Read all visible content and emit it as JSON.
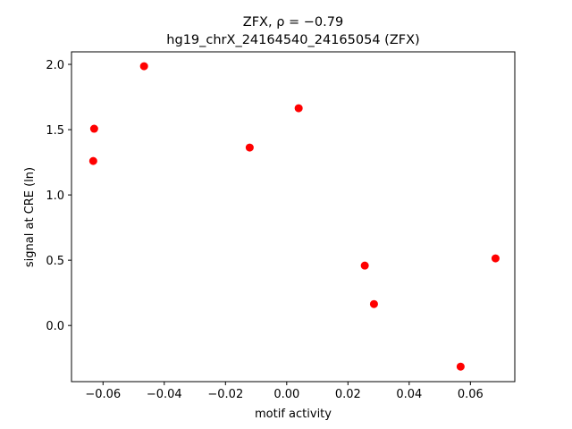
{
  "chart_data": {
    "type": "scatter",
    "title": "ZFX, ρ = −0.79",
    "subtitle": "hg19_chrX_24164540_24165054 (ZFX)",
    "x_label": "motif activity",
    "y_label": "signal at CRE (ln)",
    "color": "#ff0000",
    "x": [
      -0.0629,
      -0.0466,
      -0.0632,
      -0.0121,
      0.0039,
      0.0255,
      0.0285,
      0.0568,
      0.0682
    ],
    "y": [
      1.507,
      1.986,
      1.26,
      1.363,
      1.664,
      0.459,
      0.164,
      -0.315,
      0.514
    ],
    "xlim": [
      -0.0703,
      0.0745
    ],
    "ylim": [
      -0.43,
      2.096
    ],
    "xticks": [
      {
        "value": -0.06,
        "label": "−0.06"
      },
      {
        "value": -0.04,
        "label": "−0.04"
      },
      {
        "value": -0.02,
        "label": "−0.02"
      },
      {
        "value": 0,
        "label": "0.00"
      },
      {
        "value": 0.02,
        "label": "0.02"
      },
      {
        "value": 0.04,
        "label": "0.04"
      },
      {
        "value": 0.06,
        "label": "0.06"
      }
    ],
    "yticks": [
      {
        "value": 0,
        "label": "0.0"
      },
      {
        "value": 0.5,
        "label": "0.5"
      },
      {
        "value": 1,
        "label": "1.0"
      },
      {
        "value": 1.5,
        "label": "1.5"
      },
      {
        "value": 2,
        "label": "2.0"
      }
    ]
  }
}
